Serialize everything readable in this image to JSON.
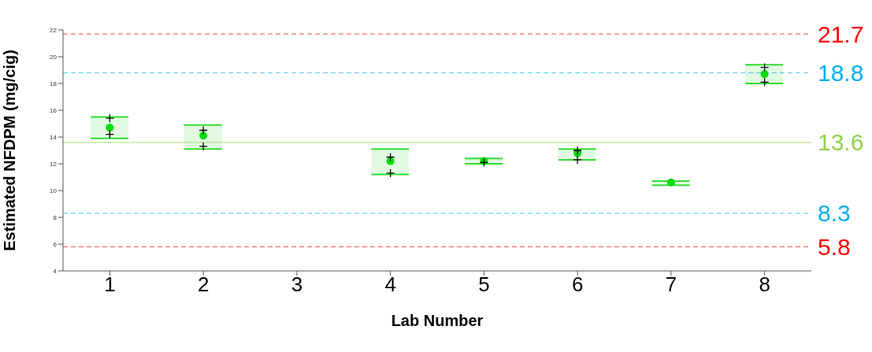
{
  "chart_data": {
    "type": "bar",
    "categories": [
      "1",
      "2",
      "3",
      "4",
      "5",
      "6",
      "7",
      "8"
    ],
    "xlabel": "Lab Number",
    "ylabel": "Estimated  NFDPM (mg/cig)",
    "ylim": [
      4,
      22
    ],
    "yticks": [
      4,
      6,
      8,
      10,
      12,
      14,
      16,
      18,
      20,
      22
    ],
    "legend": false,
    "grid": false,
    "series": [
      {
        "color": "#33dd33",
        "base": [
          13.9,
          13.1,
          null,
          11.2,
          12.0,
          12.3,
          10.4,
          18.0
        ],
        "values": [
          1.6,
          1.8,
          null,
          1.9,
          0.4,
          0.8,
          0.3,
          1.4
        ]
      },
      {
        "type": "scatter",
        "marker": "circle",
        "color": "#00dd00",
        "values": [
          14.7,
          14.1,
          null,
          12.2,
          12.2,
          12.8,
          10.6,
          18.7
        ]
      },
      {
        "type": "scatter",
        "marker": "cross",
        "color": "#000000",
        "values": [
          15.4,
          14.5,
          null,
          12.5,
          null,
          13.0,
          null,
          19.2
        ]
      },
      {
        "type": "scatter",
        "marker": "cross",
        "color": "#000000",
        "values": [
          14.2,
          13.3,
          null,
          11.3,
          12.1,
          12.3,
          null,
          18.1
        ]
      }
    ],
    "ref_lines": [
      {
        "axis": "y",
        "value": 21.7,
        "label": "21.7",
        "color": "#ff0000",
        "line_style": "dashed"
      },
      {
        "axis": "y",
        "value": 18.8,
        "label": "18.8",
        "color": "#00b0f0",
        "line_style": "dashed"
      },
      {
        "axis": "y",
        "value": 13.6,
        "label": "13.6",
        "color": "#92d050",
        "line_style": "solid"
      },
      {
        "axis": "y",
        "value": 8.3,
        "label": "8.3",
        "color": "#00b0f0",
        "line_style": "dashed"
      },
      {
        "axis": "y",
        "value": 5.8,
        "label": "5.8",
        "color": "#ff0000",
        "line_style": "dashed"
      }
    ]
  }
}
